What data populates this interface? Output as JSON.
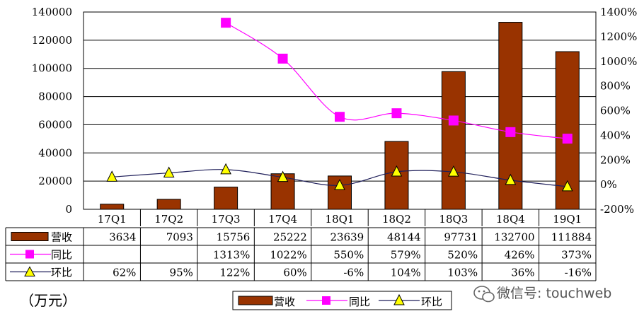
{
  "chart_data": {
    "type": "bar",
    "categories": [
      "17Q1",
      "17Q2",
      "17Q3",
      "17Q4",
      "18Q1",
      "18Q2",
      "18Q3",
      "18Q4",
      "19Q1"
    ],
    "series": [
      {
        "name": "营收",
        "kind": "bar",
        "axis": "left",
        "color": "#993300",
        "values": [
          3634,
          7093,
          15756,
          25222,
          23639,
          48144,
          97731,
          132700,
          111884
        ],
        "labels": [
          "3634",
          "7093",
          "15756",
          "25222",
          "23639",
          "48144",
          "97731",
          "132700",
          "111884"
        ]
      },
      {
        "name": "同比",
        "kind": "line",
        "axis": "right",
        "color": "#ff00ff",
        "marker": "square",
        "values": [
          null,
          null,
          1313,
          1022,
          550,
          579,
          520,
          426,
          373
        ],
        "labels": [
          "",
          "",
          "1313%",
          "1022%",
          "550%",
          "579%",
          "520%",
          "426%",
          "373%"
        ]
      },
      {
        "name": "环比",
        "kind": "line",
        "axis": "right",
        "color": "#1f1f5a",
        "marker": "triangle",
        "marker_fill": "#ffff00",
        "values": [
          62,
          95,
          122,
          60,
          -6,
          104,
          103,
          36,
          -16
        ],
        "labels": [
          "62%",
          "95%",
          "122%",
          "60%",
          "-6%",
          "104%",
          "103%",
          "36%",
          "-16%"
        ]
      }
    ],
    "y_left": {
      "min": 0,
      "max": 140000,
      "step": 20000,
      "ticks": [
        "0",
        "20000",
        "40000",
        "60000",
        "80000",
        "100000",
        "120000",
        "140000"
      ]
    },
    "y_right": {
      "min": -200,
      "max": 1400,
      "step": 200,
      "ticks": [
        "-200%",
        "0%",
        "200%",
        "400%",
        "600%",
        "800%",
        "1000%",
        "1200%",
        "1400%"
      ]
    },
    "unit": "（万元）",
    "legend": {
      "position": "bottom",
      "items": [
        "营收",
        "同比",
        "环比"
      ]
    },
    "grid": true,
    "data_table": true
  },
  "watermark": {
    "icon": "wechat-icon",
    "text": "微信号: touchweb"
  }
}
